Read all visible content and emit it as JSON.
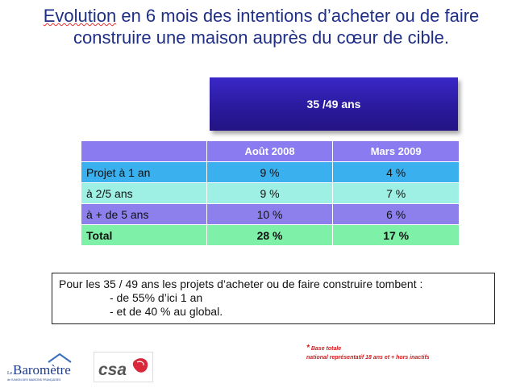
{
  "title": {
    "first_word": "Evolution",
    "rest_line1": " en 6 mois des intentions d’acheter ou de faire",
    "line2": "construire une maison auprès du cœur de cible."
  },
  "header_box": {
    "label": "35 /49 ans"
  },
  "table": {
    "headers": [
      "",
      "Août 2008",
      "Mars 2009"
    ],
    "rows": [
      {
        "label": "Projet à 1 an",
        "aout_2008": "9 %",
        "mars_2009": "4 %"
      },
      {
        "label": "à 2/5 ans",
        "aout_2008": "9 %",
        "mars_2009": "7 %"
      },
      {
        "label": "à + de 5 ans",
        "aout_2008": "10 %",
        "mars_2009": "6 %"
      },
      {
        "label": "Total",
        "aout_2008": "28 %",
        "mars_2009": "17 %"
      }
    ]
  },
  "note": {
    "line1": "Pour les 35 / 49 ans les projets d’acheter ou de faire construire tombent :",
    "line2": "- de 55% d’ici 1 an",
    "line3": "- et de 40 % au global."
  },
  "footnote": {
    "star": "*",
    "line1": " Base totale",
    "line2": "national représentatif 18 ans et + hors inactifs"
  },
  "logos": {
    "barometre_prefix": "Le",
    "barometre_name": "Baromètre",
    "barometre_sub": "de l’UNION DES MAISONS FRANÇAISES",
    "csa": "csa"
  },
  "colors": {
    "title": "#1f2f86",
    "header_box": "#2b1a9e",
    "table_header": "#8a7cf0",
    "row1": "#3bb0ef",
    "row2": "#9ff0e4",
    "row3": "#8d80ec",
    "row4": "#7ff0a8",
    "footnote": "#d81818"
  }
}
